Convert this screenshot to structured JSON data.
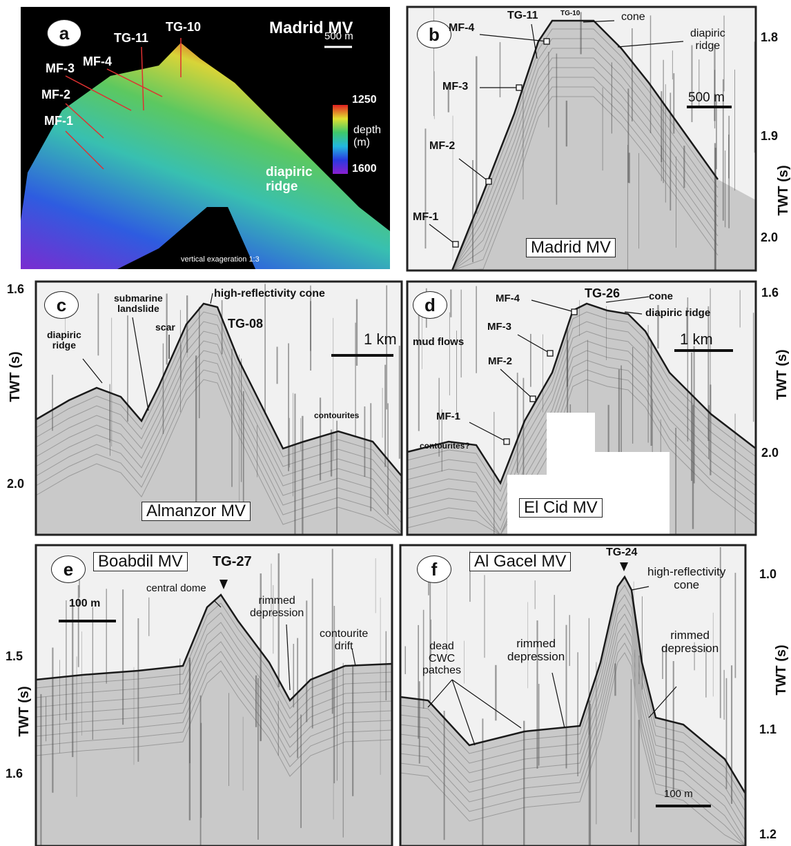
{
  "panels": [
    {
      "letter": "a",
      "title": "Madrid MV",
      "labels": [
        "TG-10",
        "TG-11",
        "MF-4",
        "MF-3",
        "MF-2",
        "MF-1",
        "diapiric\nridge",
        "500 m",
        "1250",
        "depth\n(m)",
        "1600",
        "vertical exageration 1:3"
      ]
    },
    {
      "letter": "b",
      "title": "Madrid MV",
      "labels": [
        "TG-11",
        "TG-10",
        "cone",
        "diapiric\nridge",
        "MF-4",
        "MF-3",
        "MF-2",
        "MF-1",
        "500 m"
      ],
      "axis": {
        "title": "TWT (s)",
        "ticks": [
          "1.8",
          "1.9",
          "2.0"
        ]
      }
    },
    {
      "letter": "c",
      "title": "Almanzor MV",
      "labels": [
        "submarine\nlandslide",
        "high-reflectivity cone",
        "scar",
        "TG-08",
        "diapiric\nridge",
        "1 km",
        "contourites"
      ],
      "axis": {
        "title": "TWT (s)",
        "ticks": [
          "1.6",
          "2.0"
        ]
      }
    },
    {
      "letter": "d",
      "title": "El Cid MV",
      "labels": [
        "MF-4",
        "TG-26",
        "cone",
        "diapiric ridge",
        "MF-3",
        "mud flows",
        "MF-2",
        "1 km",
        "MF-1",
        "contourites?"
      ],
      "axis": {
        "title": "TWT (s)",
        "ticks": [
          "1.6",
          "2.0"
        ]
      }
    },
    {
      "letter": "e",
      "title": "Boabdil MV",
      "labels": [
        "TG-27",
        "central dome",
        "rimmed\ndepression",
        "contourite\ndrift",
        "100 m"
      ],
      "axis": {
        "title": "TWT (s)",
        "ticks": [
          "1.5",
          "1.6"
        ]
      }
    },
    {
      "letter": "f",
      "title": "Al Gacel MV",
      "labels": [
        "TG-24",
        "high-reflectivity\ncone",
        "dead\nCWC\npatches",
        "rimmed\ndepression",
        "rimmed\ndepression",
        "100 m"
      ],
      "axis": {
        "title": "TWT (s)",
        "ticks": [
          "1.0",
          "1.1",
          "1.2"
        ]
      }
    }
  ]
}
